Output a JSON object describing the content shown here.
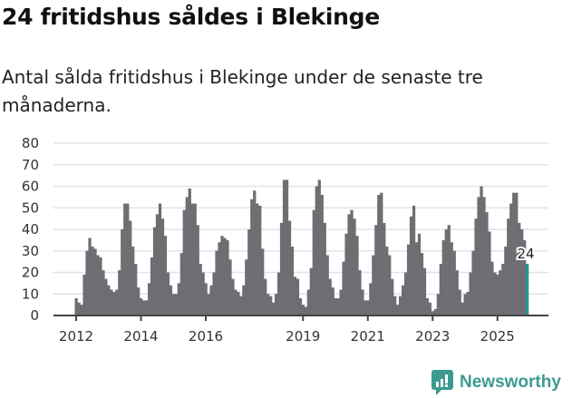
{
  "header": {
    "title": "24 fritidshus såldes i Blekinge",
    "subtitle": "Antal sålda fritidshus i Blekinge under de senaste tre månaderna."
  },
  "brand": {
    "name": "Newsworthy",
    "color": "#3c9a8e",
    "icon": "newsworthy-logo-icon"
  },
  "colors": {
    "bar": "#6f6d73",
    "highlight": "#1a9d91",
    "grid": "#e3e3e3",
    "axis": "#444444"
  },
  "chart_data": {
    "type": "bar",
    "title": "24 fritidshus såldes i Blekinge",
    "subtitle": "Antal sålda fritidshus i Blekinge under de senaste tre månaderna.",
    "xlabel": "",
    "ylabel": "",
    "ylim": [
      0,
      80
    ],
    "yticks": [
      0,
      10,
      20,
      30,
      40,
      50,
      60,
      70,
      80
    ],
    "xticks": [
      "2012",
      "2014",
      "2016",
      "2019",
      "2021",
      "2023",
      "2025"
    ],
    "grid": true,
    "legend": "none",
    "frequency": "monthly (rolling 3 months)",
    "start": "2012-01",
    "annotation": {
      "label": "24",
      "value": 24,
      "position": "last"
    },
    "values": [
      8,
      6,
      5,
      19,
      30,
      36,
      32,
      31,
      28,
      27,
      21,
      17,
      14,
      12,
      11,
      12,
      21,
      40,
      52,
      52,
      44,
      32,
      24,
      13,
      8,
      7,
      7,
      15,
      27,
      41,
      47,
      52,
      45,
      37,
      20,
      14,
      10,
      10,
      15,
      29,
      49,
      55,
      59,
      52,
      52,
      42,
      24,
      20,
      15,
      10,
      14,
      20,
      30,
      34,
      37,
      36,
      35,
      26,
      17,
      12,
      11,
      9,
      14,
      26,
      40,
      54,
      58,
      52,
      51,
      31,
      17,
      10,
      9,
      6,
      10,
      20,
      43,
      63,
      63,
      44,
      32,
      18,
      17,
      8,
      5,
      4,
      12,
      22,
      49,
      60,
      63,
      56,
      43,
      28,
      17,
      13,
      8,
      8,
      12,
      25,
      38,
      47,
      49,
      45,
      37,
      21,
      12,
      7,
      7,
      15,
      28,
      42,
      56,
      57,
      43,
      32,
      28,
      17,
      9,
      5,
      9,
      14,
      20,
      33,
      46,
      51,
      34,
      38,
      29,
      22,
      8,
      6,
      2,
      3,
      10,
      24,
      35,
      40,
      42,
      34,
      30,
      21,
      12,
      6,
      10,
      11,
      20,
      30,
      45,
      55,
      60,
      55,
      48,
      39,
      25,
      20,
      19,
      21,
      24,
      32,
      45,
      52,
      57,
      57,
      43,
      40,
      35,
      24
    ]
  }
}
